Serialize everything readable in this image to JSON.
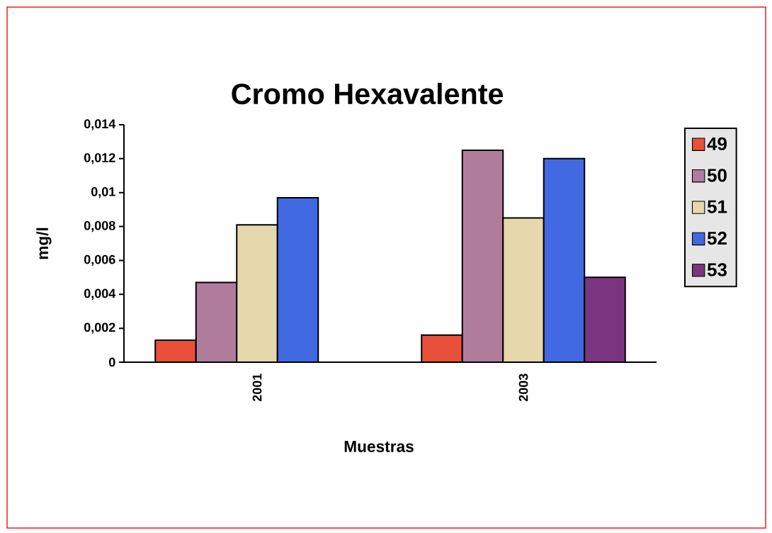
{
  "chart_data": {
    "type": "bar",
    "title": "Cromo Hexavalente",
    "xlabel": "Muestras",
    "ylabel": "mg/l",
    "categories": [
      "2001",
      "2003"
    ],
    "series": [
      {
        "name": "49",
        "color": "#e8503a",
        "values": [
          0.0013,
          0.0016
        ]
      },
      {
        "name": "50",
        "color": "#b07c9c",
        "values": [
          0.0047,
          0.0125
        ]
      },
      {
        "name": "51",
        "color": "#e6d7ad",
        "values": [
          0.0081,
          0.0085
        ]
      },
      {
        "name": "52",
        "color": "#4169e1",
        "values": [
          0.0097,
          0.012
        ]
      },
      {
        "name": "53",
        "color": "#7b3580",
        "values": [
          null,
          0.005
        ]
      }
    ],
    "ylim": [
      0,
      0.014
    ],
    "yticks": [
      0,
      {
        "value": 0.002,
        "label": "0,002"
      },
      {
        "value": 0.004,
        "label": "0,004"
      },
      {
        "value": 0.006,
        "label": "0,006"
      },
      {
        "value": 0.008,
        "label": "0,008"
      },
      {
        "value": 0.01,
        "label": "0,01"
      },
      {
        "value": 0.012,
        "label": "0,012"
      },
      {
        "value": 0.014,
        "label": "0,014"
      }
    ],
    "legend": "right"
  }
}
